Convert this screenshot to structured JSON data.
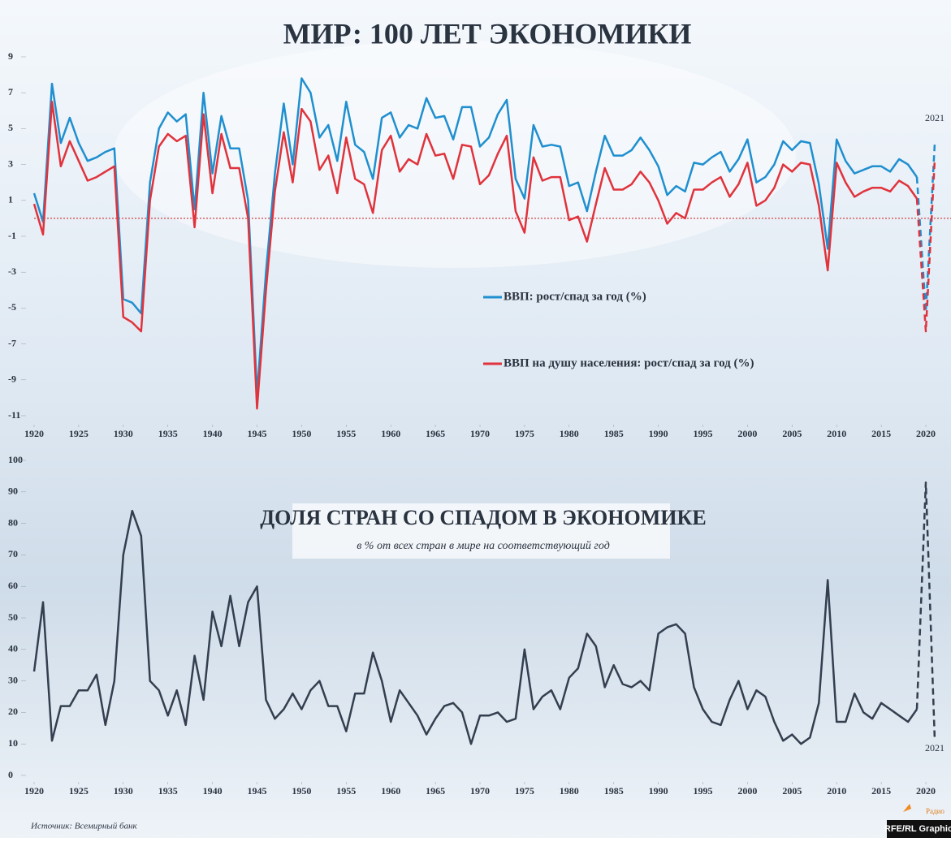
{
  "chart_data": [
    {
      "type": "line",
      "title": "МИР: 100 ЛЕТ ЭКОНОМИКИ",
      "x": [
        1920,
        1921,
        1922,
        1923,
        1924,
        1925,
        1926,
        1927,
        1928,
        1929,
        1930,
        1931,
        1932,
        1933,
        1934,
        1935,
        1936,
        1937,
        1938,
        1939,
        1940,
        1941,
        1942,
        1943,
        1944,
        1945,
        1946,
        1947,
        1948,
        1949,
        1950,
        1951,
        1952,
        1953,
        1954,
        1955,
        1956,
        1957,
        1958,
        1959,
        1960,
        1961,
        1962,
        1963,
        1964,
        1965,
        1966,
        1967,
        1968,
        1969,
        1970,
        1971,
        1972,
        1973,
        1974,
        1975,
        1976,
        1977,
        1978,
        1979,
        1980,
        1981,
        1982,
        1983,
        1984,
        1985,
        1986,
        1987,
        1988,
        1989,
        1990,
        1991,
        1992,
        1993,
        1994,
        1995,
        1996,
        1997,
        1998,
        1999,
        2000,
        2001,
        2002,
        2003,
        2004,
        2005,
        2006,
        2007,
        2008,
        2009,
        2010,
        2011,
        2012,
        2013,
        2014,
        2015,
        2016,
        2017,
        2018,
        2019,
        2020,
        2021
      ],
      "series": [
        {
          "name": "ВВП: рост/спад за год (%)",
          "color": "#1f8fcf",
          "values": [
            1.4,
            -0.2,
            7.5,
            4.2,
            5.6,
            4.2,
            3.2,
            3.4,
            3.7,
            3.9,
            -4.5,
            -4.7,
            -5.3,
            2.0,
            5.0,
            5.9,
            5.4,
            5.8,
            0.5,
            7.0,
            2.5,
            5.7,
            3.9,
            3.9,
            1.0,
            -9.8,
            -3.0,
            2.5,
            6.4,
            3.0,
            7.8,
            7.0,
            4.5,
            5.2,
            3.2,
            6.5,
            4.1,
            3.7,
            2.2,
            5.6,
            5.9,
            4.5,
            5.2,
            5.0,
            6.7,
            5.6,
            5.7,
            4.4,
            6.2,
            6.2,
            4.0,
            4.5,
            5.8,
            6.6,
            2.2,
            1.1,
            5.2,
            4.0,
            4.1,
            4.0,
            1.8,
            2.0,
            0.4,
            2.6,
            4.6,
            3.5,
            3.5,
            3.8,
            4.5,
            3.8,
            2.9,
            1.3,
            1.8,
            1.5,
            3.1,
            3.0,
            3.4,
            3.7,
            2.6,
            3.3,
            4.4,
            2.0,
            2.3,
            3.0,
            4.3,
            3.8,
            4.3,
            4.2,
            1.9,
            -1.7,
            4.4,
            3.2,
            2.5,
            2.7,
            2.9,
            2.9,
            2.6,
            3.3,
            3.0,
            2.3,
            -5.2,
            4.2
          ]
        },
        {
          "name": "ВВП на душу населения: рост/спад за год (%)",
          "color": "#e0333c",
          "values": [
            0.8,
            -0.9,
            6.5,
            2.9,
            4.3,
            3.2,
            2.1,
            2.3,
            2.6,
            2.9,
            -5.5,
            -5.8,
            -6.3,
            1.0,
            4.0,
            4.7,
            4.3,
            4.6,
            -0.5,
            5.8,
            1.4,
            4.7,
            2.8,
            2.8,
            0.0,
            -10.6,
            -4.0,
            1.5,
            4.8,
            2.0,
            6.1,
            5.4,
            2.7,
            3.5,
            1.4,
            4.5,
            2.2,
            1.9,
            0.3,
            3.8,
            4.6,
            2.6,
            3.3,
            3.0,
            4.7,
            3.5,
            3.6,
            2.2,
            4.1,
            4.0,
            1.9,
            2.4,
            3.6,
            4.6,
            0.4,
            -0.8,
            3.4,
            2.1,
            2.3,
            2.3,
            -0.1,
            0.1,
            -1.3,
            0.8,
            2.8,
            1.6,
            1.6,
            1.9,
            2.6,
            2.0,
            1.0,
            -0.3,
            0.3,
            0.0,
            1.6,
            1.6,
            2.0,
            2.3,
            1.2,
            1.9,
            3.1,
            0.7,
            1.0,
            1.7,
            3.0,
            2.6,
            3.1,
            3.0,
            0.7,
            -2.9,
            3.1,
            2.0,
            1.2,
            1.5,
            1.7,
            1.7,
            1.5,
            2.1,
            1.8,
            1.1,
            -6.3,
            3.3
          ]
        }
      ],
      "dashed_from": 2019,
      "annotations": [
        "2021"
      ],
      "xlim": [
        1920,
        2021
      ],
      "xticks": [
        1920,
        1925,
        1930,
        1935,
        1940,
        1945,
        1950,
        1955,
        1960,
        1965,
        1970,
        1975,
        1980,
        1985,
        1990,
        1995,
        2000,
        2005,
        2010,
        2015,
        2020
      ],
      "ylim": [
        -11,
        9
      ],
      "yticks": [
        -11,
        -9,
        -7,
        -5,
        -3,
        -1,
        1,
        3,
        5,
        7,
        9
      ],
      "zero_line": true,
      "legend": "center"
    },
    {
      "type": "line",
      "title": "ДОЛЯ СТРАН СО СПАДОМ В ЭКОНОМИКЕ",
      "subtitle": "в % от всех стран в мире на соответствующий год",
      "x": [
        1920,
        1921,
        1922,
        1923,
        1924,
        1925,
        1926,
        1927,
        1928,
        1929,
        1930,
        1931,
        1932,
        1933,
        1934,
        1935,
        1936,
        1937,
        1938,
        1939,
        1940,
        1941,
        1942,
        1943,
        1944,
        1945,
        1946,
        1947,
        1948,
        1949,
        1950,
        1951,
        1952,
        1953,
        1954,
        1955,
        1956,
        1957,
        1958,
        1959,
        1960,
        1961,
        1962,
        1963,
        1964,
        1965,
        1966,
        1967,
        1968,
        1969,
        1970,
        1971,
        1972,
        1973,
        1974,
        1975,
        1976,
        1977,
        1978,
        1979,
        1980,
        1981,
        1982,
        1983,
        1984,
        1985,
        1986,
        1987,
        1988,
        1989,
        1990,
        1991,
        1992,
        1993,
        1994,
        1995,
        1996,
        1997,
        1998,
        1999,
        2000,
        2001,
        2002,
        2003,
        2004,
        2005,
        2006,
        2007,
        2008,
        2009,
        2010,
        2011,
        2012,
        2013,
        2014,
        2015,
        2016,
        2017,
        2018,
        2019,
        2020,
        2021
      ],
      "series": [
        {
          "color": "#333f4f",
          "values": [
            33,
            55,
            11,
            22,
            22,
            27,
            27,
            32,
            16,
            30,
            70,
            84,
            76,
            30,
            27,
            19,
            27,
            16,
            38,
            24,
            52,
            41,
            57,
            41,
            55,
            60,
            24,
            18,
            21,
            26,
            21,
            27,
            30,
            22,
            22,
            14,
            26,
            26,
            39,
            30,
            17,
            27,
            23,
            19,
            13,
            18,
            22,
            23,
            20,
            10,
            19,
            19,
            20,
            17,
            18,
            40,
            21,
            25,
            27,
            21,
            31,
            34,
            45,
            41,
            28,
            35,
            29,
            28,
            30,
            27,
            45,
            47,
            48,
            45,
            28,
            21,
            17,
            16,
            24,
            30,
            21,
            27,
            25,
            17,
            11,
            13,
            10,
            12,
            23,
            62,
            17,
            17,
            26,
            20,
            18,
            23,
            21,
            19,
            17,
            21,
            93,
            11
          ]
        }
      ],
      "dashed_from": 2019,
      "annotations": [
        "2021"
      ],
      "xlim": [
        1920,
        2021
      ],
      "xticks": [
        1920,
        1925,
        1930,
        1935,
        1940,
        1945,
        1950,
        1955,
        1960,
        1965,
        1970,
        1975,
        1980,
        1985,
        1990,
        1995,
        2000,
        2005,
        2010,
        2015,
        2020
      ],
      "ylim": [
        0,
        100
      ],
      "yticks": [
        0,
        10,
        20,
        30,
        40,
        50,
        60,
        70,
        80,
        90,
        100
      ]
    }
  ],
  "source": "Источник: Всемирный банк",
  "logo": {
    "top": "Радио",
    "bottom": "RFE/RL Graphic"
  }
}
